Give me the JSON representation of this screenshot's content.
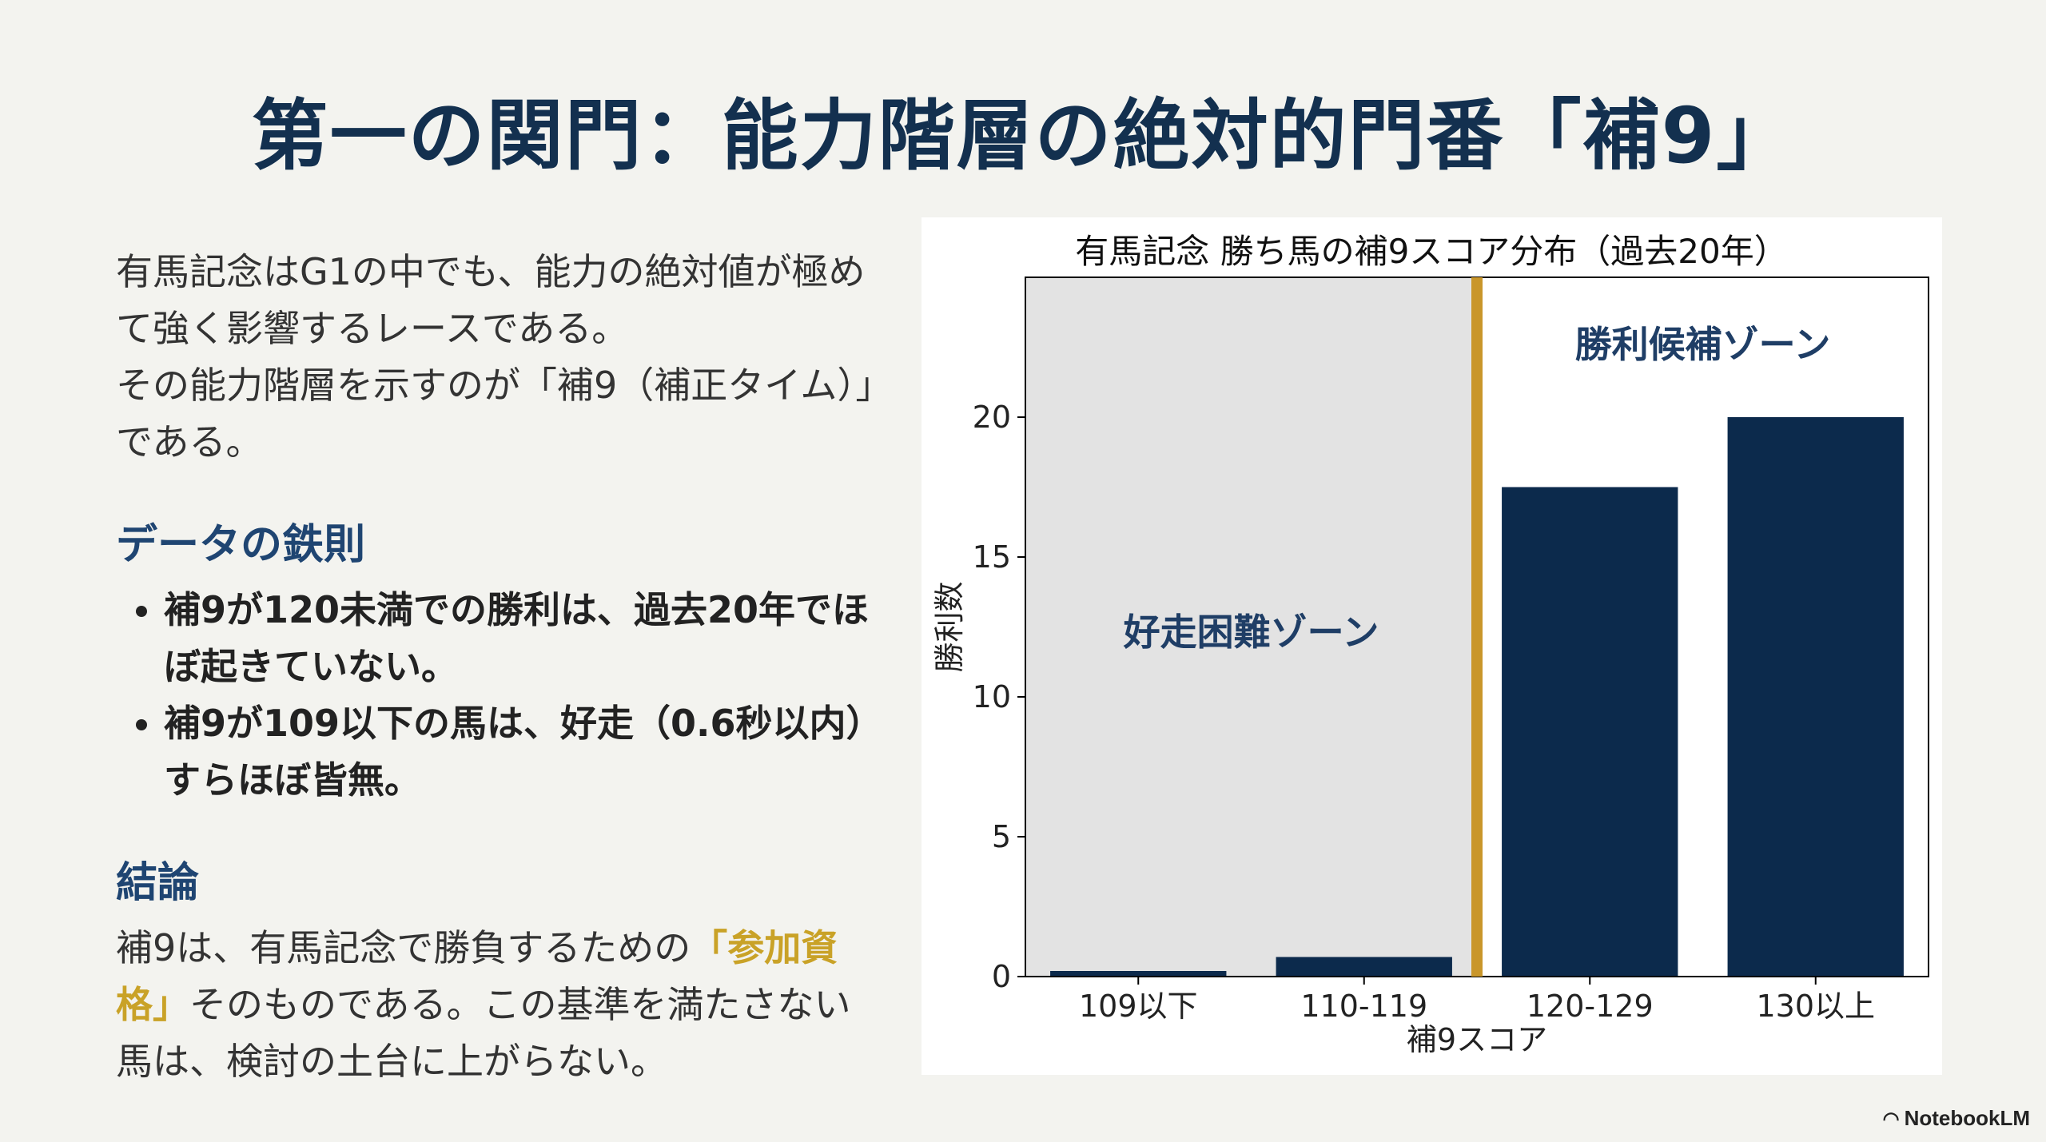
{
  "title": "第一の関門：能力階層の絶対的門番「補9」",
  "intro": {
    "paragraph1": "有馬記念はG1の中でも、能力の絶対値が極めて強く影響するレースである。",
    "paragraph2": "その能力階層を示すのが「補9（補正タイム）」である。"
  },
  "rules": {
    "heading": "データの鉄則",
    "items": [
      "補9が120未満での勝利は、過去20年でほぼ起きていない。",
      "補9が109以下の馬は、好走（0.6秒以内）すらほぼ皆無。"
    ]
  },
  "conclusion": {
    "heading": "結論",
    "text_before": "補9は、有馬記念で勝負するための",
    "highlight": "「参加資格」",
    "text_after": "そのものである。この基準を満たさない馬は、検討の土台に上がらない。"
  },
  "chart_data": {
    "type": "bar",
    "title": "有馬記念 勝ち馬の補9スコア分布（過去20年）",
    "xlabel": "補9スコア",
    "ylabel": "勝利数",
    "categories": [
      "109以下",
      "110-119",
      "120-129",
      "130以上"
    ],
    "values": [
      0.2,
      0.7,
      17.5,
      20
    ],
    "ylim": [
      0,
      25
    ],
    "yticks": [
      0,
      5,
      10,
      15,
      20
    ],
    "bar_color": "#0c2a4c",
    "zones": [
      {
        "label": "好走困難ゾーン",
        "from_category": 0,
        "to_category": 1,
        "color": "#e3e3e3"
      },
      {
        "label": "勝利候補ゾーン",
        "from_category": 2,
        "to_category": 3,
        "color": "#ffffff"
      }
    ],
    "threshold_line_color": "#c9962a"
  },
  "footer": {
    "logo_text": "NotebookLM",
    "logo_icon": "notebooklm-icon"
  }
}
